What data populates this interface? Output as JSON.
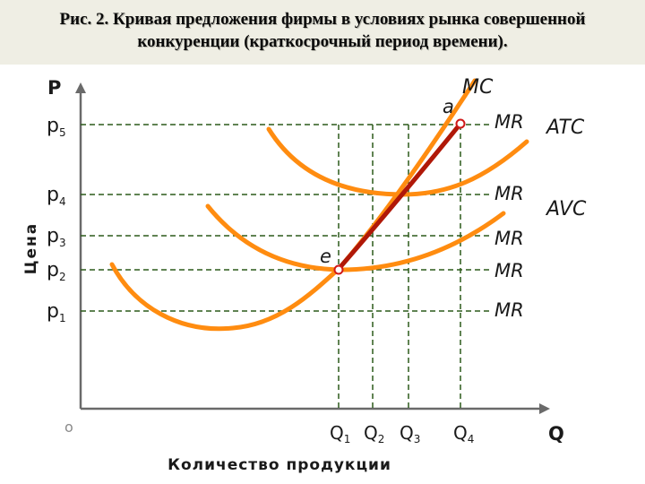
{
  "title": {
    "line1": "Рис. 2. Кривая предложения фирмы в условиях рынка совершенной",
    "line2": "конкуренции (краткосрочный период времени)."
  },
  "axes": {
    "y_symbol": "P",
    "x_symbol": "Q",
    "origin": "o",
    "y_label": "Цена",
    "x_label": "Количество продукции"
  },
  "price_levels": [
    {
      "base": "p",
      "sub": "5",
      "mr": "MR"
    },
    {
      "base": "p",
      "sub": "4",
      "mr": "MR"
    },
    {
      "base": "p",
      "sub": "3",
      "mr": "MR"
    },
    {
      "base": "p",
      "sub": "2",
      "mr": "MR"
    },
    {
      "base": "p",
      "sub": "1",
      "mr": "MR"
    }
  ],
  "quantities": [
    {
      "base": "Q",
      "sub": "1"
    },
    {
      "base": "Q",
      "sub": "2"
    },
    {
      "base": "Q",
      "sub": "3"
    },
    {
      "base": "Q",
      "sub": "4"
    }
  ],
  "curves": {
    "mc": "MC",
    "atc": "ATC",
    "avc": "AVC"
  },
  "points": {
    "a": "a",
    "e": "e"
  },
  "colors": {
    "curve": "#ff8c10",
    "supply": "#b01808",
    "guides": "#2c5a1a",
    "axis": "#6a6a6a",
    "label": "#1a1a1a",
    "title_band": "#efeee4"
  }
}
